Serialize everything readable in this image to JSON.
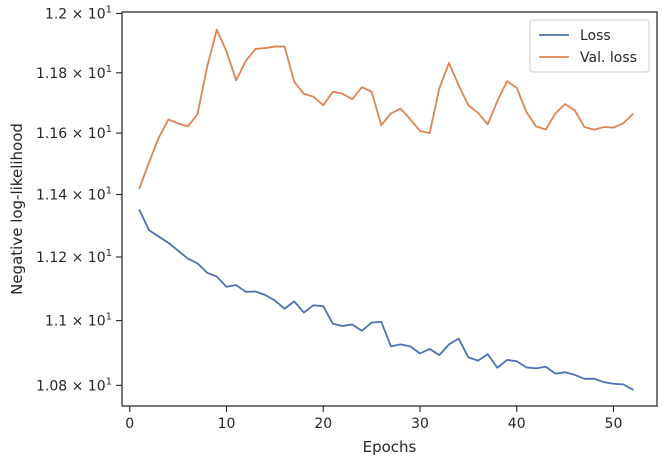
{
  "chart_data": {
    "type": "line",
    "xlabel": "Epochs",
    "ylabel": "Negative log-likelihood",
    "xlim": [
      -0.8,
      54.5
    ],
    "ylim": [
      10.737,
      12.005
    ],
    "yscale": "log",
    "grid": false,
    "legend_position": "top-right",
    "x_ticks": [
      {
        "value": 0,
        "label": "0"
      },
      {
        "value": 10,
        "label": "10"
      },
      {
        "value": 20,
        "label": "20"
      },
      {
        "value": 30,
        "label": "30"
      },
      {
        "value": 40,
        "label": "40"
      },
      {
        "value": 50,
        "label": "50"
      }
    ],
    "y_ticks": [
      {
        "value": 10.8,
        "base": "1.08",
        "exp": "1"
      },
      {
        "value": 11.0,
        "base": "1.1",
        "exp": "1"
      },
      {
        "value": 11.2,
        "base": "1.12",
        "exp": "1"
      },
      {
        "value": 11.4,
        "base": "1.14",
        "exp": "1"
      },
      {
        "value": 11.6,
        "base": "1.16",
        "exp": "1"
      },
      {
        "value": 11.8,
        "base": "1.18",
        "exp": "1"
      },
      {
        "value": 12.0,
        "base": "1.2",
        "exp": "1"
      }
    ],
    "x": [
      1,
      2,
      3,
      4,
      5,
      6,
      7,
      8,
      9,
      10,
      11,
      12,
      13,
      14,
      15,
      16,
      17,
      18,
      19,
      20,
      21,
      22,
      23,
      24,
      25,
      26,
      27,
      28,
      29,
      30,
      31,
      32,
      33,
      34,
      35,
      36,
      37,
      38,
      39,
      40,
      41,
      42,
      43,
      44,
      45,
      46,
      47,
      48,
      49,
      50,
      51,
      52
    ],
    "series": [
      {
        "name": "Loss",
        "color": "#4c72b0",
        "values": [
          11.35,
          11.285,
          11.265,
          11.245,
          11.22,
          11.195,
          11.18,
          11.15,
          11.138,
          11.106,
          11.111,
          11.09,
          11.091,
          11.08,
          11.063,
          11.037,
          11.06,
          11.025,
          11.048,
          11.045,
          10.99,
          10.983,
          10.988,
          10.968,
          10.994,
          10.996,
          10.92,
          10.926,
          10.92,
          10.898,
          10.912,
          10.893,
          10.926,
          10.944,
          10.886,
          10.876,
          10.896,
          10.854,
          10.878,
          10.874,
          10.855,
          10.852,
          10.857,
          10.836,
          10.84,
          10.832,
          10.82,
          10.82,
          10.81,
          10.805,
          10.803,
          10.787
        ]
      },
      {
        "name": "Val. loss",
        "color": "#dd8452",
        "values": [
          11.42,
          11.505,
          11.585,
          11.645,
          11.632,
          11.622,
          11.662,
          11.82,
          11.945,
          11.872,
          11.775,
          11.84,
          11.88,
          11.883,
          11.888,
          11.888,
          11.77,
          11.73,
          11.72,
          11.692,
          11.737,
          11.73,
          11.712,
          11.752,
          11.737,
          11.626,
          11.665,
          11.681,
          11.645,
          11.607,
          11.6,
          11.748,
          11.833,
          11.758,
          11.692,
          11.667,
          11.629,
          11.706,
          11.772,
          11.75,
          11.67,
          11.622,
          11.612,
          11.665,
          11.696,
          11.675,
          11.62,
          11.611,
          11.62,
          11.618,
          11.632,
          11.663
        ]
      }
    ]
  }
}
